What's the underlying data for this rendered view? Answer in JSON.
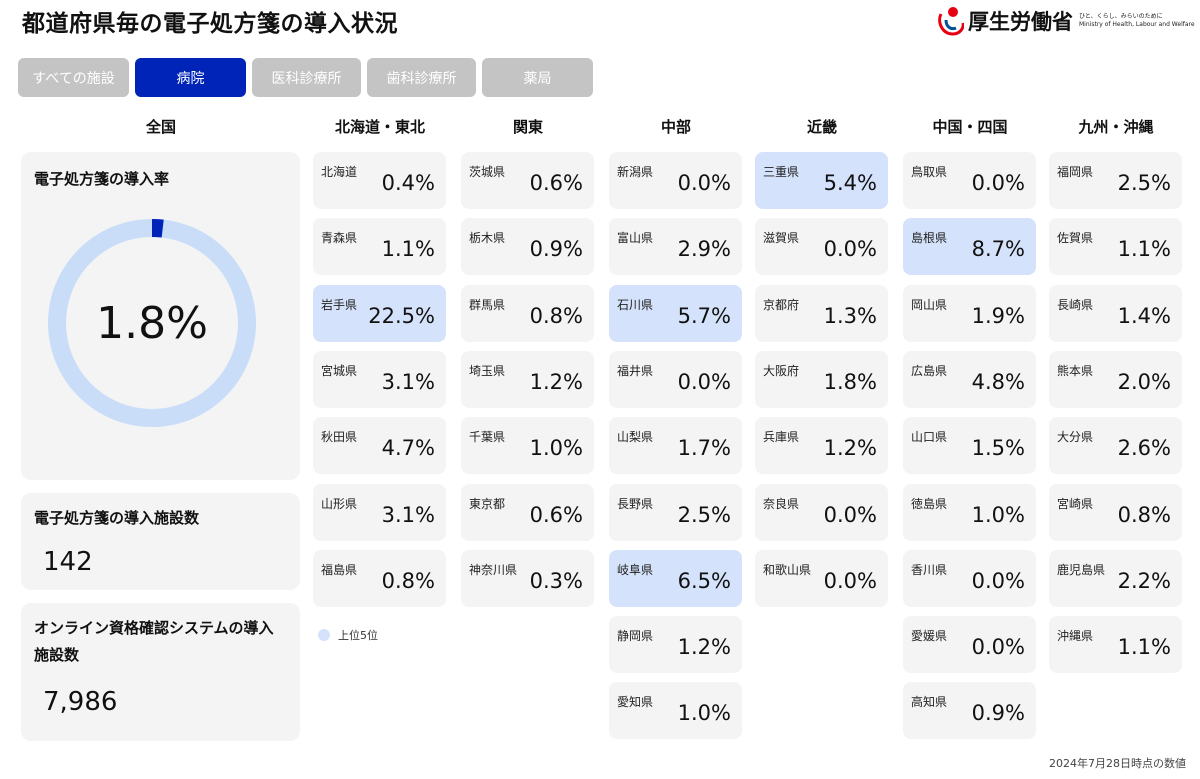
{
  "header": {
    "title": "都道府県毎の電子処方箋の導入状況",
    "logo_name": "厚生労働省",
    "logo_tagline_jp": "ひと、くらし、みらいのために",
    "logo_tagline_en": "Ministry of Health, Labour and Welfare"
  },
  "tabs": [
    {
      "label": "すべての施設",
      "active": false
    },
    {
      "label": "病院",
      "active": true
    },
    {
      "label": "医科診療所",
      "active": false
    },
    {
      "label": "歯科診療所",
      "active": false
    },
    {
      "label": "薬局",
      "active": false
    }
  ],
  "national": {
    "heading": "全国",
    "rate_label": "電子処方箋の導入率",
    "rate_value": "1.8%",
    "rate_fraction": 0.018,
    "facilities_label": "電子処方箋の導入施設数",
    "facilities_value": "142",
    "online_label_line1": "オンライン資格確認システムの導入",
    "online_label_line2": "施設数",
    "online_value": "7,986"
  },
  "regions": [
    {
      "name": "北海道・東北",
      "prefs": [
        {
          "name": "北海道",
          "value": "0.4%",
          "top5": false
        },
        {
          "name": "青森県",
          "value": "1.1%",
          "top5": false
        },
        {
          "name": "岩手県",
          "value": "22.5%",
          "top5": true
        },
        {
          "name": "宮城県",
          "value": "3.1%",
          "top5": false
        },
        {
          "name": "秋田県",
          "value": "4.7%",
          "top5": false
        },
        {
          "name": "山形県",
          "value": "3.1%",
          "top5": false
        },
        {
          "name": "福島県",
          "value": "0.8%",
          "top5": false
        }
      ]
    },
    {
      "name": "関東",
      "prefs": [
        {
          "name": "茨城県",
          "value": "0.6%",
          "top5": false
        },
        {
          "name": "栃木県",
          "value": "0.9%",
          "top5": false
        },
        {
          "name": "群馬県",
          "value": "0.8%",
          "top5": false
        },
        {
          "name": "埼玉県",
          "value": "1.2%",
          "top5": false
        },
        {
          "name": "千葉県",
          "value": "1.0%",
          "top5": false
        },
        {
          "name": "東京都",
          "value": "0.6%",
          "top5": false
        },
        {
          "name": "神奈川県",
          "value": "0.3%",
          "top5": false
        }
      ]
    },
    {
      "name": "中部",
      "prefs": [
        {
          "name": "新潟県",
          "value": "0.0%",
          "top5": false
        },
        {
          "name": "富山県",
          "value": "2.9%",
          "top5": false
        },
        {
          "name": "石川県",
          "value": "5.7%",
          "top5": true
        },
        {
          "name": "福井県",
          "value": "0.0%",
          "top5": false
        },
        {
          "name": "山梨県",
          "value": "1.7%",
          "top5": false
        },
        {
          "name": "長野県",
          "value": "2.5%",
          "top5": false
        },
        {
          "name": "岐阜県",
          "value": "6.5%",
          "top5": true
        },
        {
          "name": "静岡県",
          "value": "1.2%",
          "top5": false
        },
        {
          "name": "愛知県",
          "value": "1.0%",
          "top5": false
        }
      ]
    },
    {
      "name": "近畿",
      "prefs": [
        {
          "name": "三重県",
          "value": "5.4%",
          "top5": true
        },
        {
          "name": "滋賀県",
          "value": "0.0%",
          "top5": false
        },
        {
          "name": "京都府",
          "value": "1.3%",
          "top5": false
        },
        {
          "name": "大阪府",
          "value": "1.8%",
          "top5": false
        },
        {
          "name": "兵庫県",
          "value": "1.2%",
          "top5": false
        },
        {
          "name": "奈良県",
          "value": "0.0%",
          "top5": false
        },
        {
          "name": "和歌山県",
          "value": "0.0%",
          "top5": false
        }
      ]
    },
    {
      "name": "中国・四国",
      "prefs": [
        {
          "name": "鳥取県",
          "value": "0.0%",
          "top5": false
        },
        {
          "name": "島根県",
          "value": "8.7%",
          "top5": true
        },
        {
          "name": "岡山県",
          "value": "1.9%",
          "top5": false
        },
        {
          "name": "広島県",
          "value": "4.8%",
          "top5": false
        },
        {
          "name": "山口県",
          "value": "1.5%",
          "top5": false
        },
        {
          "name": "徳島県",
          "value": "1.0%",
          "top5": false
        },
        {
          "name": "香川県",
          "value": "0.0%",
          "top5": false
        },
        {
          "name": "愛媛県",
          "value": "0.0%",
          "top5": false
        },
        {
          "name": "高知県",
          "value": "0.9%",
          "top5": false
        }
      ]
    },
    {
      "name": "九州・沖縄",
      "prefs": [
        {
          "name": "福岡県",
          "value": "2.5%",
          "top5": false
        },
        {
          "name": "佐賀県",
          "value": "1.1%",
          "top5": false
        },
        {
          "name": "長崎県",
          "value": "1.4%",
          "top5": false
        },
        {
          "name": "熊本県",
          "value": "2.0%",
          "top5": false
        },
        {
          "name": "大分県",
          "value": "2.6%",
          "top5": false
        },
        {
          "name": "宮崎県",
          "value": "0.8%",
          "top5": false
        },
        {
          "name": "鹿児島県",
          "value": "2.2%",
          "top5": false
        },
        {
          "name": "沖縄県",
          "value": "1.1%",
          "top5": false
        }
      ]
    }
  ],
  "legend": {
    "label": "上位5位"
  },
  "footnote": "2024年7月28日時点の数値",
  "colors": {
    "accent": "#0023b8",
    "highlight": "#d4e3fb",
    "tab_inactive": "#c4c4c4",
    "card_bg": "#f4f4f5"
  }
}
